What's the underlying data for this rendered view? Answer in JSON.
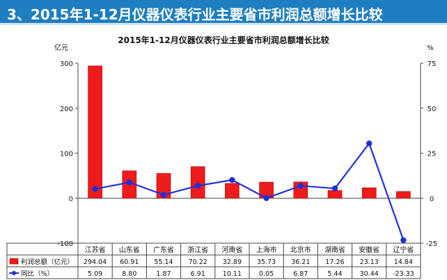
{
  "banner": {
    "title": "3、2015年1-12月仪器仪表行业主要省市利润总额增长比较"
  },
  "chart_data": {
    "type": "bar",
    "title": "2015年1-12月仪器仪表行业主要省市利润总额增长比较",
    "categories": [
      "江苏省",
      "山东省",
      "广东省",
      "浙江省",
      "河南省",
      "上海市",
      "北京市",
      "湖南省",
      "安徽省",
      "辽宁省"
    ],
    "series": [
      {
        "name": "利润总额（亿元）",
        "type": "bar",
        "axis": "left",
        "color": "#ee1c1c",
        "values": [
          294.04,
          60.91,
          55.14,
          70.22,
          32.89,
          35.73,
          36.21,
          17.26,
          23.13,
          14.84
        ],
        "labels": [
          "294.04",
          "60.91",
          "55.14",
          "70.22",
          "32.89",
          "35.73",
          "36.21",
          "17.26",
          "23.13",
          "14.84"
        ]
      },
      {
        "name": "同比（%）",
        "type": "line",
        "axis": "right",
        "color": "#1f2fd6",
        "values": [
          5.09,
          8.8,
          1.87,
          6.91,
          10.11,
          0.05,
          6.87,
          5.44,
          30.44,
          -23.33
        ],
        "labels": [
          "5.09",
          "8.80",
          "1.87",
          "6.91",
          "10.11",
          "0.05",
          "6.87",
          "5.44",
          "30.44",
          "-23.33"
        ]
      }
    ],
    "left_axis": {
      "unit": "亿元",
      "ylim": [
        -100,
        300
      ],
      "ticks": [
        -100,
        0,
        100,
        200,
        300
      ]
    },
    "right_axis": {
      "unit": "%",
      "ylim": [
        -25,
        75
      ],
      "ticks": [
        -25,
        0,
        25,
        50,
        75
      ]
    },
    "grid": false,
    "legend": "data-table"
  }
}
